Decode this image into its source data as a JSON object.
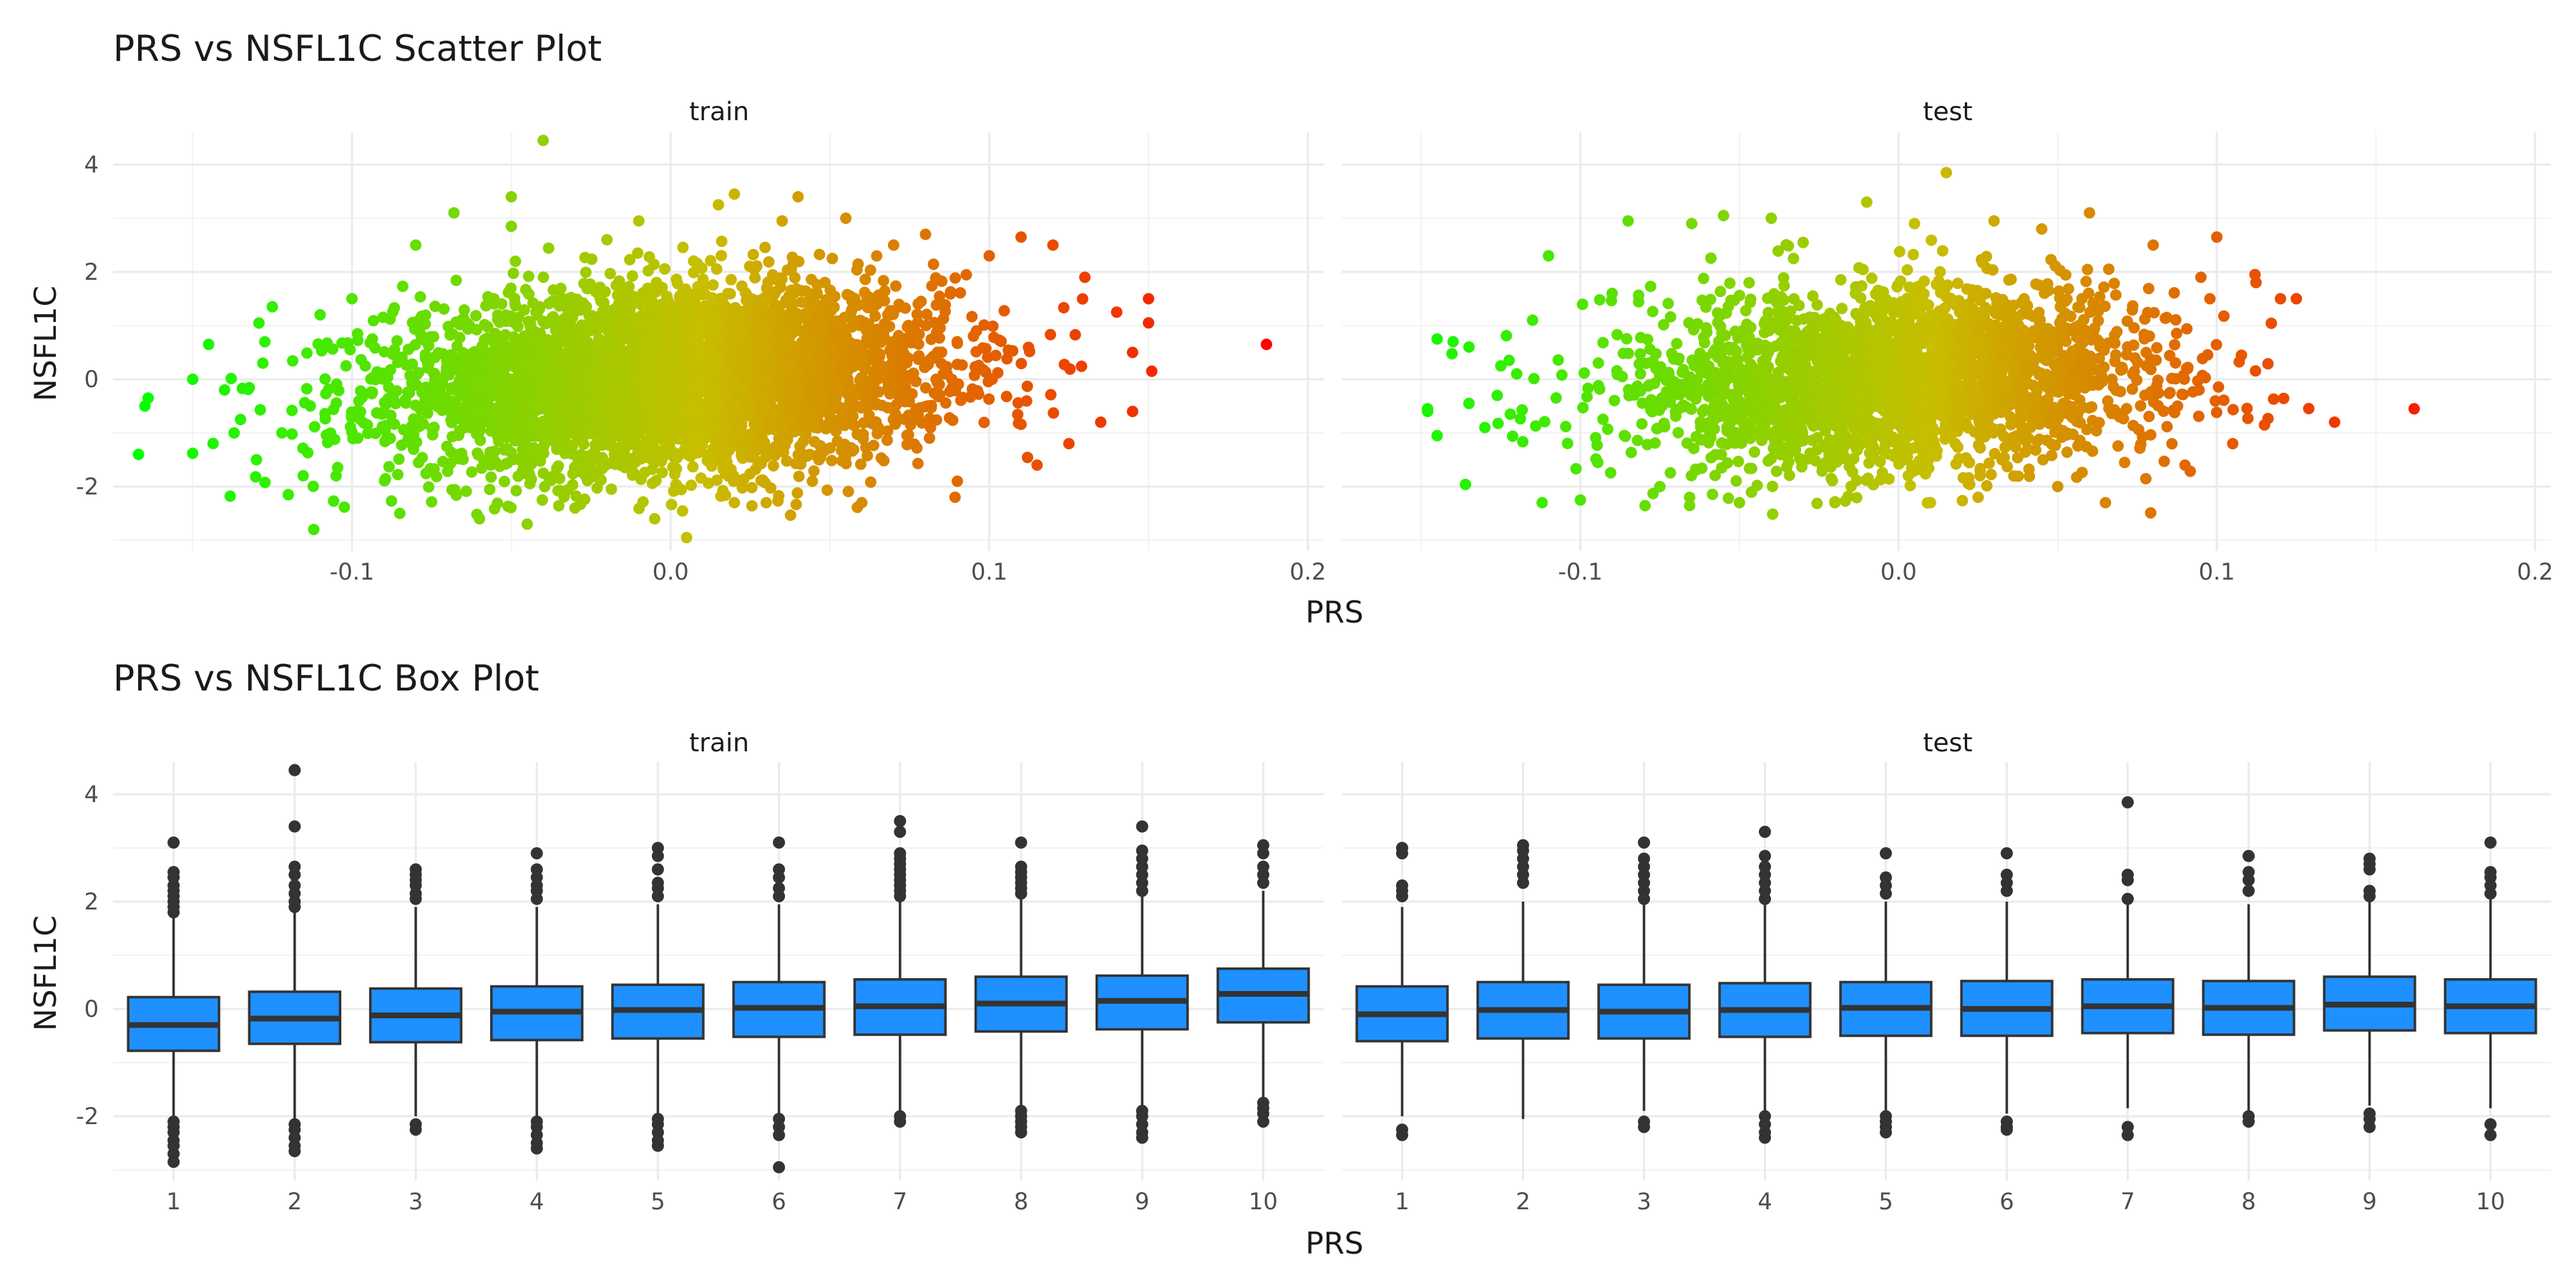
{
  "chart_data": [
    {
      "type": "scatter",
      "title": "PRS vs NSFL1C Scatter Plot",
      "xlabel": "PRS",
      "ylabel": "NSFL1C",
      "xlim": [
        -0.175,
        0.205
      ],
      "ylim": [
        -3.2,
        4.6
      ],
      "x_ticks": [
        -0.1,
        0.0,
        0.1,
        0.2
      ],
      "x_tick_labels": [
        "-0.1",
        "0.0",
        "0.1",
        "0.2"
      ],
      "y_ticks": [
        -2,
        0,
        2,
        4
      ],
      "y_tick_labels": [
        "-2",
        "0",
        "2",
        "4"
      ],
      "color_scale": {
        "low": "#00FF00",
        "high": "#FF0000",
        "domain": [
          -0.17,
          0.19
        ]
      },
      "panels": [
        {
          "name": "train",
          "points": [
            [
              -0.167,
              -1.4
            ],
            [
              -0.165,
              -0.5
            ],
            [
              -0.164,
              -0.35
            ],
            [
              -0.15,
              -1.38
            ],
            [
              -0.15,
              0.0
            ],
            [
              -0.145,
              0.65
            ],
            [
              -0.14,
              -0.2
            ],
            [
              -0.137,
              -1.0
            ],
            [
              -0.135,
              -0.75
            ],
            [
              -0.13,
              -1.5
            ],
            [
              -0.128,
              0.3
            ],
            [
              -0.125,
              1.35
            ],
            [
              -0.122,
              -1.0
            ],
            [
              -0.12,
              -2.15
            ],
            [
              -0.112,
              -2.8
            ],
            [
              -0.11,
              1.2
            ],
            [
              -0.105,
              -1.8
            ],
            [
              -0.1,
              1.5
            ],
            [
              -0.085,
              -2.5
            ],
            [
              -0.08,
              2.5
            ],
            [
              -0.068,
              3.1
            ],
            [
              -0.06,
              -2.6
            ],
            [
              -0.05,
              2.85
            ],
            [
              -0.05,
              3.4
            ],
            [
              -0.045,
              -2.7
            ],
            [
              -0.04,
              4.45
            ],
            [
              -0.03,
              -2.4
            ],
            [
              -0.02,
              2.6
            ],
            [
              -0.01,
              2.95
            ],
            [
              -0.005,
              -2.6
            ],
            [
              0.005,
              -2.95
            ],
            [
              0.015,
              3.25
            ],
            [
              0.02,
              -2.3
            ],
            [
              0.02,
              3.45
            ],
            [
              0.03,
              -2.3
            ],
            [
              0.035,
              2.95
            ],
            [
              0.04,
              3.4
            ],
            [
              0.055,
              3.0
            ],
            [
              0.06,
              -2.3
            ],
            [
              0.07,
              2.5
            ],
            [
              0.08,
              2.7
            ],
            [
              0.09,
              -1.9
            ],
            [
              0.1,
              2.3
            ],
            [
              0.11,
              2.65
            ],
            [
              0.115,
              -1.6
            ],
            [
              0.12,
              2.5
            ],
            [
              0.125,
              -1.2
            ],
            [
              0.13,
              1.9
            ],
            [
              0.135,
              -0.8
            ],
            [
              0.14,
              1.25
            ],
            [
              0.145,
              0.5
            ],
            [
              0.145,
              -0.6
            ],
            [
              0.15,
              1.5
            ],
            [
              0.15,
              1.05
            ],
            [
              0.151,
              0.15
            ],
            [
              0.187,
              0.65
            ]
          ]
        },
        {
          "name": "test",
          "points": [
            [
              -0.148,
              -0.6
            ],
            [
              -0.148,
              -0.55
            ],
            [
              -0.145,
              0.75
            ],
            [
              -0.145,
              -1.05
            ],
            [
              -0.14,
              0.7
            ],
            [
              -0.135,
              -0.45
            ],
            [
              -0.135,
              0.6
            ],
            [
              -0.13,
              -0.9
            ],
            [
              -0.125,
              0.25
            ],
            [
              -0.122,
              -0.65
            ],
            [
              -0.12,
              0.1
            ],
            [
              -0.115,
              1.1
            ],
            [
              -0.112,
              -2.3
            ],
            [
              -0.11,
              2.3
            ],
            [
              -0.1,
              -2.25
            ],
            [
              -0.09,
              1.6
            ],
            [
              -0.085,
              2.95
            ],
            [
              -0.075,
              -2.0
            ],
            [
              -0.065,
              2.9
            ],
            [
              -0.055,
              3.05
            ],
            [
              -0.05,
              -2.3
            ],
            [
              -0.04,
              3.0
            ],
            [
              -0.03,
              2.55
            ],
            [
              -0.02,
              -2.3
            ],
            [
              -0.01,
              3.3
            ],
            [
              0.005,
              2.9
            ],
            [
              0.01,
              -2.3
            ],
            [
              0.015,
              3.85
            ],
            [
              0.025,
              -2.2
            ],
            [
              0.03,
              2.95
            ],
            [
              0.045,
              2.8
            ],
            [
              0.05,
              -2.0
            ],
            [
              0.06,
              3.1
            ],
            [
              0.065,
              -2.3
            ],
            [
              0.08,
              2.5
            ],
            [
              0.09,
              -1.6
            ],
            [
              0.095,
              1.9
            ],
            [
              0.1,
              2.65
            ],
            [
              0.105,
              -1.2
            ],
            [
              0.112,
              1.95
            ],
            [
              0.115,
              -0.85
            ],
            [
              0.12,
              1.5
            ],
            [
              0.125,
              1.5
            ],
            [
              0.137,
              -0.8
            ],
            [
              0.162,
              -0.55
            ]
          ]
        }
      ]
    },
    {
      "type": "box",
      "title": "PRS vs NSFL1C Box Plot",
      "xlabel": "PRS",
      "ylabel": "NSFL1C",
      "ylim": [
        -3.2,
        4.6
      ],
      "y_ticks": [
        -2,
        0,
        2,
        4
      ],
      "y_tick_labels": [
        "-2",
        "0",
        "2",
        "4"
      ],
      "categories": [
        "1",
        "2",
        "3",
        "4",
        "5",
        "6",
        "7",
        "8",
        "9",
        "10"
      ],
      "box_color": "#1E90FF",
      "panels": [
        {
          "name": "train",
          "boxes": [
            {
              "q1": -0.78,
              "median": -0.3,
              "q3": 0.22,
              "lower": -2.0,
              "upper": 1.7,
              "outliers": [
                3.1,
                2.55,
                2.45,
                2.3,
                2.2,
                2.1,
                2.0,
                1.9,
                1.8,
                -2.1,
                -2.2,
                -2.3,
                -2.45,
                -2.55,
                -2.7,
                -2.85
              ]
            },
            {
              "q1": -0.65,
              "median": -0.18,
              "q3": 0.32,
              "lower": -2.05,
              "upper": 1.8,
              "outliers": [
                4.45,
                3.4,
                2.65,
                2.5,
                2.3,
                2.15,
                2.0,
                1.9,
                -2.15,
                -2.25,
                -2.4,
                -2.55,
                -2.65
              ]
            },
            {
              "q1": -0.62,
              "median": -0.12,
              "q3": 0.38,
              "lower": -2.0,
              "upper": 1.9,
              "outliers": [
                2.6,
                2.5,
                2.4,
                2.3,
                2.15,
                2.05,
                -2.15,
                -2.25
              ]
            },
            {
              "q1": -0.58,
              "median": -0.05,
              "q3": 0.42,
              "lower": -2.0,
              "upper": 1.9,
              "outliers": [
                2.9,
                2.6,
                2.45,
                2.3,
                2.2,
                2.05,
                -2.1,
                -2.2,
                -2.35,
                -2.5,
                -2.6
              ]
            },
            {
              "q1": -0.55,
              "median": -0.02,
              "q3": 0.45,
              "lower": -2.0,
              "upper": 1.95,
              "outliers": [
                3.0,
                2.85,
                2.6,
                2.35,
                2.25,
                2.1,
                -2.05,
                -2.15,
                -2.3,
                -2.45,
                -2.55
              ]
            },
            {
              "q1": -0.52,
              "median": 0.02,
              "q3": 0.5,
              "lower": -2.0,
              "upper": 1.95,
              "outliers": [
                3.1,
                2.6,
                2.45,
                2.25,
                2.1,
                -2.05,
                -2.2,
                -2.35,
                -2.95
              ]
            },
            {
              "q1": -0.48,
              "median": 0.05,
              "q3": 0.55,
              "lower": -1.9,
              "upper": 2.0,
              "outliers": [
                3.5,
                3.3,
                2.9,
                2.8,
                2.7,
                2.6,
                2.5,
                2.4,
                2.3,
                2.2,
                2.1,
                -2.0,
                -2.1
              ]
            },
            {
              "q1": -0.42,
              "median": 0.1,
              "q3": 0.6,
              "lower": -1.85,
              "upper": 2.05,
              "outliers": [
                3.1,
                2.65,
                2.55,
                2.45,
                2.35,
                2.25,
                2.15,
                -1.9,
                -2.0,
                -2.1,
                -2.2,
                -2.3
              ]
            },
            {
              "q1": -0.38,
              "median": 0.15,
              "q3": 0.62,
              "lower": -1.8,
              "upper": 2.1,
              "outliers": [
                3.4,
                2.95,
                2.8,
                2.65,
                2.5,
                2.35,
                2.2,
                -1.9,
                -2.0,
                -2.15,
                -2.3,
                -2.4
              ]
            },
            {
              "q1": -0.25,
              "median": 0.28,
              "q3": 0.75,
              "lower": -1.7,
              "upper": 2.2,
              "outliers": [
                3.05,
                2.9,
                2.65,
                2.5,
                2.35,
                -1.75,
                -1.85,
                -1.95,
                -2.1
              ]
            }
          ]
        },
        {
          "name": "test",
          "boxes": [
            {
              "q1": -0.6,
              "median": -0.1,
              "q3": 0.42,
              "lower": -2.0,
              "upper": 1.9,
              "outliers": [
                3.0,
                2.9,
                2.3,
                2.2,
                2.1,
                -2.25,
                -2.35
              ]
            },
            {
              "q1": -0.55,
              "median": -0.02,
              "q3": 0.5,
              "lower": -2.05,
              "upper": 2.0,
              "outliers": [
                3.05,
                2.95,
                2.8,
                2.65,
                2.5,
                2.35
              ]
            },
            {
              "q1": -0.55,
              "median": -0.05,
              "q3": 0.45,
              "lower": -1.9,
              "upper": 1.95,
              "outliers": [
                3.1,
                2.8,
                2.65,
                2.5,
                2.35,
                2.2,
                2.05,
                -2.1,
                -2.2
              ]
            },
            {
              "q1": -0.52,
              "median": -0.02,
              "q3": 0.48,
              "lower": -1.95,
              "upper": 1.95,
              "outliers": [
                3.3,
                2.85,
                2.65,
                2.5,
                2.35,
                2.2,
                2.05,
                -2.0,
                -2.15,
                -2.3,
                -2.4
              ]
            },
            {
              "q1": -0.5,
              "median": 0.02,
              "q3": 0.5,
              "lower": -1.95,
              "upper": 2.0,
              "outliers": [
                2.9,
                2.45,
                2.3,
                2.15,
                -2.0,
                -2.1,
                -2.2,
                -2.3
              ]
            },
            {
              "q1": -0.5,
              "median": 0.0,
              "q3": 0.52,
              "lower": -1.95,
              "upper": 2.0,
              "outliers": [
                2.9,
                2.5,
                2.35,
                2.2,
                -2.1,
                -2.2,
                -2.25
              ]
            },
            {
              "q1": -0.45,
              "median": 0.05,
              "q3": 0.55,
              "lower": -1.85,
              "upper": 2.0,
              "outliers": [
                3.85,
                2.5,
                2.4,
                2.05,
                -2.2,
                -2.35
              ]
            },
            {
              "q1": -0.48,
              "median": 0.02,
              "q3": 0.52,
              "lower": -1.9,
              "upper": 1.95,
              "outliers": [
                2.85,
                2.55,
                2.4,
                2.2,
                -2.0,
                -2.1
              ]
            },
            {
              "q1": -0.4,
              "median": 0.08,
              "q3": 0.6,
              "lower": -1.8,
              "upper": 2.05,
              "outliers": [
                2.8,
                2.7,
                2.6,
                2.2,
                2.1,
                -1.95,
                -2.05,
                -2.2
              ]
            },
            {
              "q1": -0.45,
              "median": 0.05,
              "q3": 0.55,
              "lower": -1.85,
              "upper": 2.05,
              "outliers": [
                3.1,
                2.55,
                2.45,
                2.3,
                2.15,
                -2.15,
                -2.35
              ]
            }
          ]
        }
      ]
    }
  ]
}
